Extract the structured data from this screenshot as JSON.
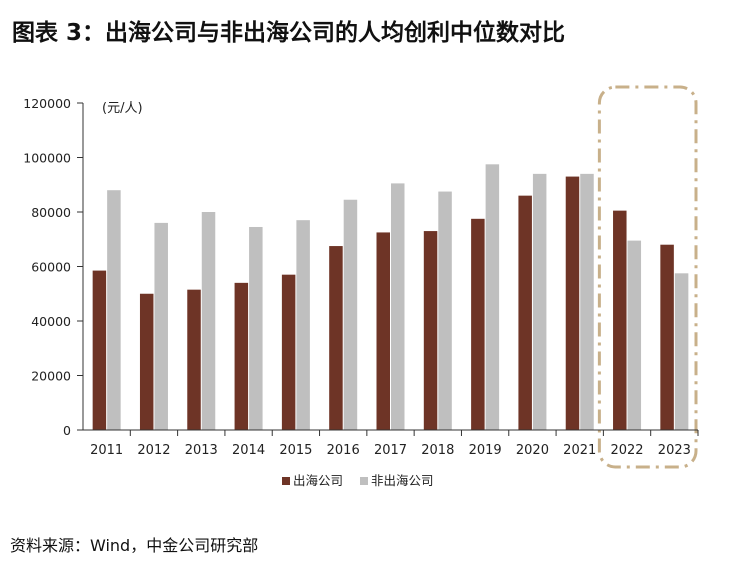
{
  "title": "图表 3：出海公司与非出海公司的人均创利中位数对比",
  "source": "资料来源：Wind，中金公司研究部",
  "chart_data": {
    "type": "bar",
    "unit_label": "(元/人)",
    "categories": [
      "2011",
      "2012",
      "2013",
      "2014",
      "2015",
      "2016",
      "2017",
      "2018",
      "2019",
      "2020",
      "2021",
      "2022",
      "2023"
    ],
    "series": [
      {
        "name": "出海公司",
        "color": "#6e3426",
        "values": [
          58500,
          50000,
          51500,
          54000,
          57000,
          67500,
          72500,
          73000,
          77500,
          86000,
          93000,
          80500,
          68000
        ]
      },
      {
        "name": "非出海公司",
        "color": "#bfbfbf",
        "values": [
          88000,
          76000,
          80000,
          74500,
          77000,
          84500,
          90500,
          87500,
          97500,
          94000,
          94000,
          69500,
          57500
        ]
      }
    ],
    "ylim": [
      0,
      120000
    ],
    "yticks": [
      "0",
      "20000",
      "40000",
      "60000",
      "80000",
      "100000",
      "120000"
    ],
    "highlight": {
      "categories": [
        "2022",
        "2023"
      ],
      "style": "dash-dot box",
      "color": "#c8b08a"
    }
  }
}
